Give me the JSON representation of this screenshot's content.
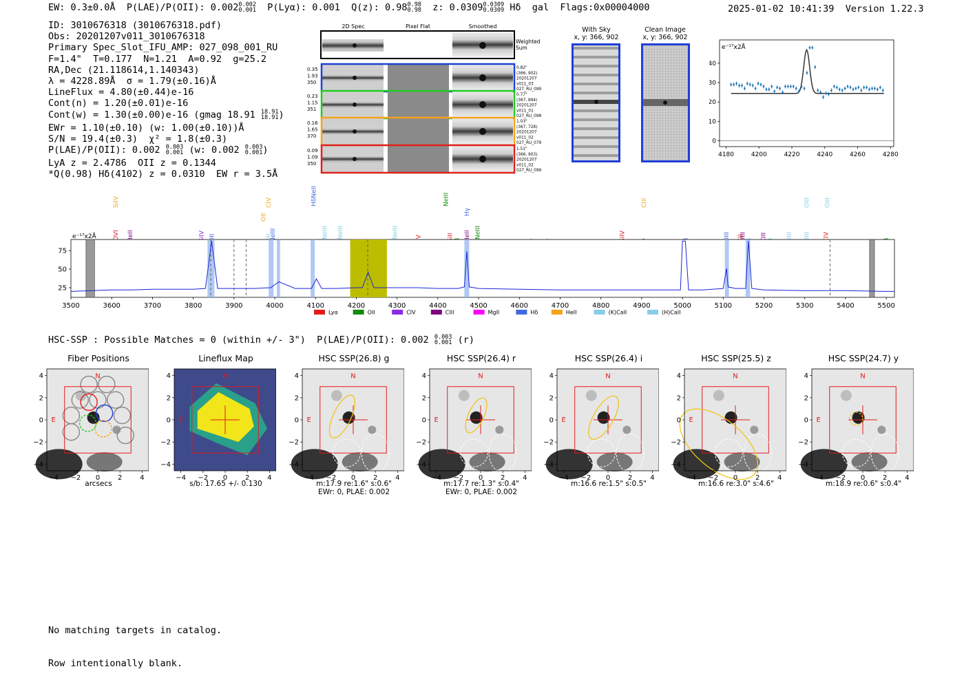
{
  "header": {
    "ew": "EW: 0.3±0.0Å",
    "plae_label": "P(LAE)/P(OII): 0.002",
    "plae_up": "0.002",
    "plae_lo": "0.001",
    "plya": "P(Lyα): 0.001",
    "qz_label": "Q(z): 0.98",
    "qz_up": "0.98",
    "qz_lo": "0.98",
    "z_label": "z: 0.0309",
    "z_up": "0.0309",
    "z_lo": "0.0309",
    "line": "Hδ",
    "type": "gal",
    "flags": "Flags:0x00004000",
    "datetime": "2025-01-02 10:41:39",
    "version": "Version 1.22.3"
  },
  "info": {
    "id": "ID: 3010676318 (3010676318.pdf)",
    "obs": "Obs: 20201207v011_3010676318",
    "primary": "Primary Spec_Slot_IFU_AMP: 027_098_001_RU",
    "fit": "F=1.4\"  T=0.177  N=1.21  A=0.92  g=25.2",
    "radec": "RA,Dec (21.118614,1.140343)",
    "lambda": "λ = 4228.89Å  σ = 1.79(±0.16)Å",
    "lineflux": "LineFlux = 4.80(±0.44)e-16",
    "contn": "Cont(n) = 1.20(±0.01)e-16",
    "contw": "Cont(w) = 1.30(±0.00)e-16 (gmag 18.91",
    "contw_up": "18.91",
    "contw_lo": "18.91",
    "ewr": "EWr = 1.10(±0.10) (w: 1.00(±0.10))Å",
    "sn": "S/N = 19.4(±0.3)  χ² = 1.8(±0.3)",
    "plae": "P(LAE)/P(OII): 0.002",
    "plae_up": "0.003",
    "plae_lo": "0.001",
    "plae_w": "(w: 0.002",
    "plae_w_up": "0.003",
    "plae_w_lo": "0.001",
    "lya_z": "LyA z = 2.4786  OII z = 0.1344",
    "q_line": "*Q(0.98) Hδ(4102) z = 0.0310  EW r = 3.5Å"
  },
  "cutouts": {
    "col_titles": [
      "2D Spec",
      "Pixel Flat",
      "Smoothed"
    ],
    "weighted_label": "Weighted Sum",
    "rows": [
      {
        "left": [
          "0.35",
          "1.93",
          "350"
        ],
        "right": [
          "0.82\"",
          "(366, 902)",
          "20201207",
          "v011_03",
          "027_RU_099"
        ],
        "color": "#1f3fd6"
      },
      {
        "left": [
          "0.23",
          "1.15",
          "351"
        ],
        "right": [
          "0.77\"",
          "(367, 894)",
          "20201207",
          "v011_01",
          "027_RU_098"
        ],
        "color": "#22cc22"
      },
      {
        "left": [
          "0.16",
          "1.65",
          "370"
        ],
        "right": [
          "1.03\"",
          "(367, 728)",
          "20201207",
          "v011_02",
          "027_RU_079"
        ],
        "color": "#f5a31a"
      },
      {
        "left": [
          "0.09",
          "1.09",
          "350"
        ],
        "right": [
          "1.51\"",
          "(366, 903)",
          "20201207",
          "v011_02",
          "027_RU_099"
        ],
        "color": "#e0201c"
      }
    ]
  },
  "sky_panels": {
    "with_sky_title": "With Sky",
    "with_sky_coords": "x, y: 366, 902",
    "clean_title": "Clean Image",
    "clean_coords": "x, y: 366, 902"
  },
  "zoom_chart": {
    "unit": "e⁻¹⁷x2Å",
    "xticks": [
      "4180",
      "4200",
      "4220",
      "4240",
      "4260",
      "4280"
    ],
    "yticks": [
      "0",
      "10",
      "20",
      "30",
      "40"
    ]
  },
  "spectrum": {
    "unit": "e⁻¹⁷x2Å",
    "xticks": [
      "3500",
      "3600",
      "3700",
      "3800",
      "3900",
      "4000",
      "4100",
      "4200",
      "4300",
      "4400",
      "4500",
      "4600",
      "4700",
      "4800",
      "4900",
      "5000",
      "5100",
      "5200",
      "5300",
      "5400",
      "5500"
    ],
    "yticks": [
      "25",
      "50",
      "75"
    ],
    "legend": [
      {
        "name": "Lyα",
        "color": "#e31a1c"
      },
      {
        "name": "OII",
        "color": "#138a07"
      },
      {
        "name": "CIV",
        "color": "#8a2be2"
      },
      {
        "name": "CIII",
        "color": "#800080"
      },
      {
        "name": "MgII",
        "color": "#ff00ff"
      },
      {
        "name": "Hδ",
        "color": "#4169e1"
      },
      {
        "name": "HeII",
        "color": "#f5a31a"
      },
      {
        "name": "(K)CaII",
        "color": "#87ceeb"
      },
      {
        "name": "(H)CaII",
        "color": "#87ceeb"
      }
    ]
  },
  "chart_data": {
    "type": "line",
    "xlabel": "",
    "ylabel": "e⁻¹⁷x2Å",
    "xlim": [
      3500,
      5520
    ],
    "ylim": [
      12,
      90
    ],
    "x": [
      3500,
      3550,
      3600,
      3650,
      3700,
      3750,
      3800,
      3830,
      3845,
      3860,
      3900,
      3950,
      3990,
      4010,
      4050,
      4090,
      4102,
      4115,
      4150,
      4200,
      4215,
      4229,
      4243,
      4300,
      4350,
      4400,
      4450,
      4465,
      4471,
      4477,
      4500,
      4600,
      4700,
      4800,
      4900,
      4950,
      4995,
      5000,
      5007,
      5015,
      5050,
      5100,
      5108,
      5112,
      5130,
      5155,
      5162,
      5170,
      5200,
      5300,
      5400,
      5500,
      5520
    ],
    "y": [
      20,
      21,
      22,
      22,
      23,
      23,
      23,
      24,
      88,
      24,
      24,
      24,
      25,
      33,
      24,
      24,
      37,
      24,
      24,
      25,
      25,
      46,
      25,
      25,
      25,
      24,
      24,
      26,
      74,
      26,
      24,
      23,
      22,
      22,
      22,
      22,
      22,
      88,
      88,
      22,
      22,
      24,
      51,
      26,
      24,
      24,
      88,
      24,
      22,
      21,
      21,
      20,
      20
    ]
  },
  "hsc": {
    "header": "HSC-SSP : Possible Matches = 0 (within +/- 3\")  P(LAE)/P(OII): 0.002",
    "header_up": "0.003",
    "header_lo": "0.001",
    "header_tail": "(r)",
    "panels": [
      {
        "title": "Fiber Positions",
        "cap1": "arcsecs",
        "cap2": ""
      },
      {
        "title": "Lineflux Map",
        "cap1": "s/b: 17.65 +/- 0.130",
        "cap2": ""
      },
      {
        "title": "HSC SSP(26.8) g",
        "cap1": "m:17.9  re:1.6\"  s:0.6\"",
        "cap2": "EWr: 0, PLAE: 0.002"
      },
      {
        "title": "HSC SSP(26.4) r",
        "cap1": "m:17.7  re:1.3\"  s:0.4\"",
        "cap2": "EWr: 0, PLAE: 0.002"
      },
      {
        "title": "HSC SSP(26.4) i",
        "cap1": "m:16.6  re:1.5\"  s:0.5\"",
        "cap2": ""
      },
      {
        "title": "HSC SSP(25.5) z",
        "cap1": "m:16.6  re:3.0\"  s:4.6\"",
        "cap2": ""
      },
      {
        "title": "HSC SSP(24.7) y",
        "cap1": "m:18.9  re:0.6\"  s:0.4\"",
        "cap2": ""
      }
    ],
    "xticks": [
      "−4",
      "−2",
      "0",
      "2",
      "4"
    ],
    "yticks": [
      "4",
      "2",
      "0",
      "−2",
      "−4"
    ],
    "north": "N",
    "east": "E"
  },
  "footer": {
    "line1": "No matching targets in catalog.",
    "line2": "Row intentionally blank."
  }
}
